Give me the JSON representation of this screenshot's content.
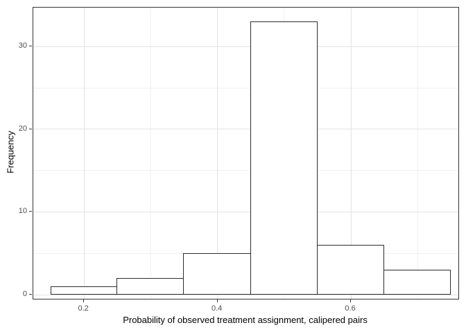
{
  "chart_data": {
    "type": "bar",
    "subtype": "histogram",
    "title": "",
    "xlabel": "Probability of observed treatment assignment, calipered pairs",
    "ylabel": "Frequency",
    "bins": [
      {
        "x0": 0.15,
        "x1": 0.25,
        "count": 1
      },
      {
        "x0": 0.25,
        "x1": 0.35,
        "count": 2
      },
      {
        "x0": 0.35,
        "x1": 0.45,
        "count": 5
      },
      {
        "x0": 0.45,
        "x1": 0.55,
        "count": 33
      },
      {
        "x0": 0.55,
        "x1": 0.65,
        "count": 6
      },
      {
        "x0": 0.65,
        "x1": 0.75,
        "count": 3
      }
    ],
    "x_ticks": [
      0.2,
      0.4,
      0.6
    ],
    "x_tick_labels": [
      "0.2",
      "0.4",
      "0.6"
    ],
    "x_minor_ticks": [
      0.3,
      0.5,
      0.7
    ],
    "y_ticks": [
      0,
      10,
      20,
      30
    ],
    "y_tick_labels": [
      "0",
      "10",
      "20",
      "30"
    ],
    "y_minor_ticks": [
      5,
      15,
      25
    ],
    "xlim": [
      0.124,
      0.761
    ],
    "ylim": [
      -0.5,
      34.7
    ],
    "grid": true,
    "legend": "none",
    "colors": {
      "background": "#ffffff",
      "panel_background": "#ffffff",
      "panel_border": "#333333",
      "grid_major": "#e3e3e3",
      "grid_minor": "#f1f1f1",
      "bar_fill": "#ffffff",
      "bar_stroke": "#2b2b2b",
      "tick_mark": "#333333",
      "tick_label": "#4d4d4d",
      "axis_title": "#000000"
    }
  }
}
